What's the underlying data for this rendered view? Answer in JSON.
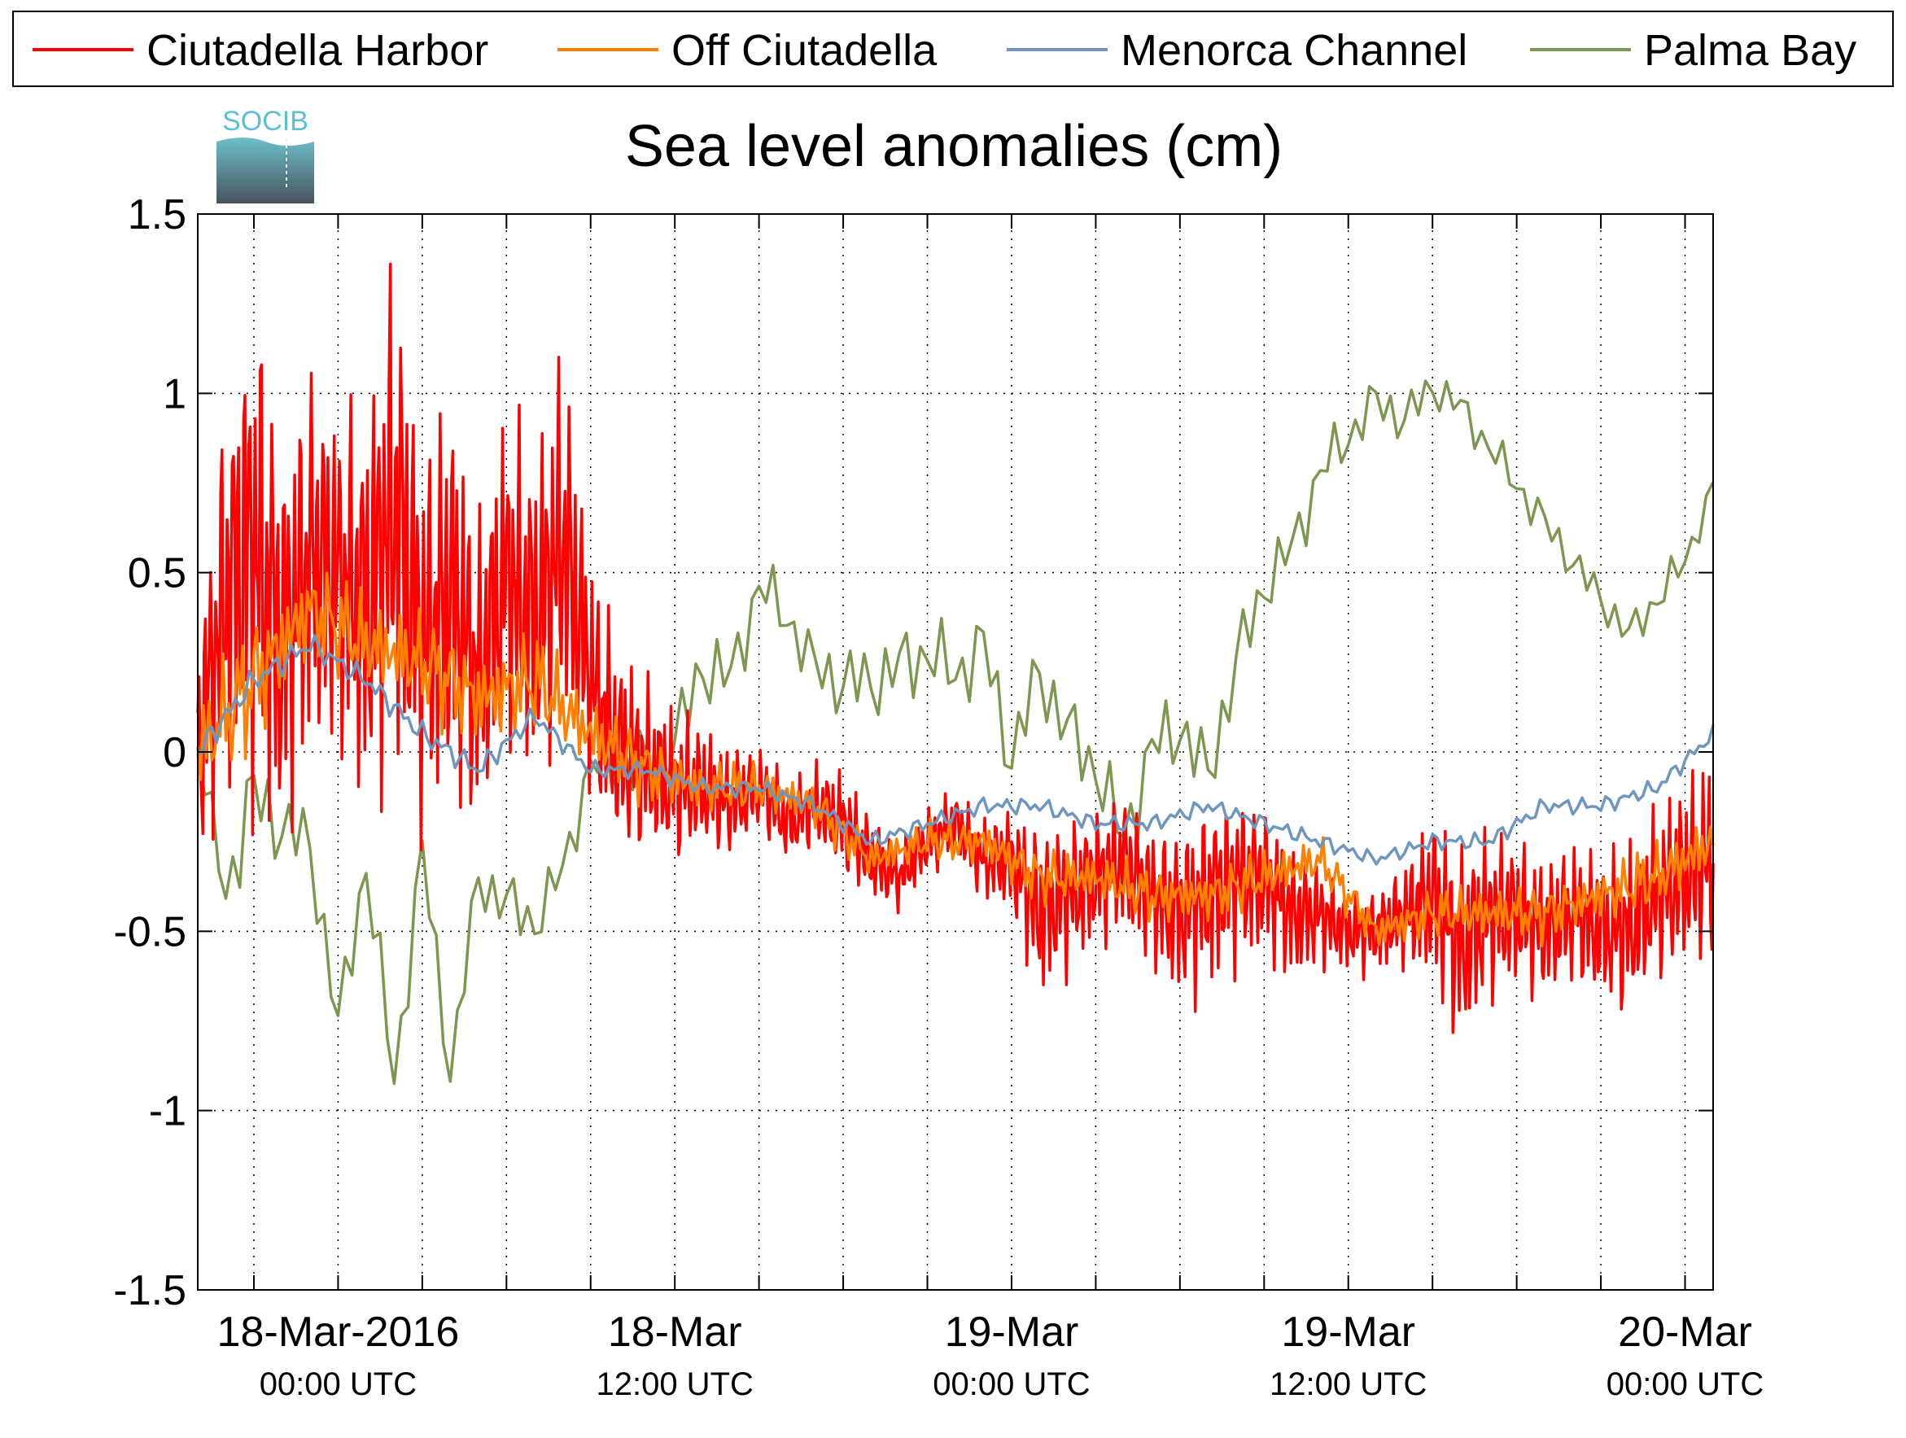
{
  "chart_data": {
    "type": "line",
    "title": "Sea level anomalies (cm)",
    "xlabel": "",
    "ylabel": "",
    "ylim": [
      -1.5,
      1.5
    ],
    "yticks": [
      -1.5,
      -1,
      -0.5,
      0,
      0.5,
      1,
      1.5
    ],
    "ytick_labels": [
      "-1.5",
      "-1",
      "-0.5",
      "0",
      "0.5",
      "1",
      "1.5"
    ],
    "xlim": [
      "2016-03-17 19:00",
      "2016-03-20 01:00"
    ],
    "x_major_ticks": [
      {
        "x": "2016-03-18 00:00",
        "label": "18-Mar-2016",
        "sublabel": "00:00 UTC"
      },
      {
        "x": "2016-03-18 12:00",
        "label": "18-Mar",
        "sublabel": "12:00 UTC"
      },
      {
        "x": "2016-03-19 00:00",
        "label": "19-Mar",
        "sublabel": "00:00 UTC"
      },
      {
        "x": "2016-03-19 12:00",
        "label": "19-Mar",
        "sublabel": "12:00 UTC"
      },
      {
        "x": "2016-03-20 00:00",
        "label": "20-Mar",
        "sublabel": "00:00 UTC"
      }
    ],
    "x_minor_tick_interval_hours": 3,
    "grid": true,
    "legend_position": "top",
    "series": [
      {
        "name": "Ciutadella Harbor",
        "color": "#ff0000",
        "x": [
          "2016-03-17 19:00",
          "2016-03-17 20:00",
          "2016-03-17 21:00",
          "2016-03-17 22:00",
          "2016-03-17 23:00",
          "2016-03-18 00:00",
          "2016-03-18 01:00",
          "2016-03-18 02:00",
          "2016-03-18 03:00",
          "2016-03-18 04:00",
          "2016-03-18 05:00",
          "2016-03-18 06:00",
          "2016-03-18 07:00",
          "2016-03-18 08:00",
          "2016-03-18 09:00",
          "2016-03-18 10:00",
          "2016-03-18 11:00",
          "2016-03-18 12:00",
          "2016-03-18 13:00",
          "2016-03-18 14:00",
          "2016-03-18 15:00",
          "2016-03-18 16:00",
          "2016-03-18 17:00",
          "2016-03-18 18:00",
          "2016-03-18 19:00",
          "2016-03-18 20:00",
          "2016-03-18 21:00",
          "2016-03-18 22:00",
          "2016-03-18 23:00",
          "2016-03-19 00:00",
          "2016-03-19 01:00",
          "2016-03-19 02:00",
          "2016-03-19 03:00",
          "2016-03-19 04:00",
          "2016-03-19 05:00",
          "2016-03-19 06:00",
          "2016-03-19 07:00",
          "2016-03-19 08:00",
          "2016-03-19 09:00",
          "2016-03-19 10:00",
          "2016-03-19 11:00",
          "2016-03-19 12:00",
          "2016-03-19 13:00",
          "2016-03-19 14:00",
          "2016-03-19 15:00",
          "2016-03-19 16:00",
          "2016-03-19 17:00",
          "2016-03-19 18:00",
          "2016-03-19 19:00",
          "2016-03-19 20:00",
          "2016-03-19 21:00",
          "2016-03-19 22:00",
          "2016-03-19 23:00",
          "2016-03-20 00:00",
          "2016-03-20 01:00"
        ],
        "values": [
          0.0,
          0.45,
          0.6,
          0.3,
          0.55,
          0.5,
          0.4,
          0.7,
          0.3,
          0.45,
          0.2,
          0.5,
          0.35,
          0.6,
          0.2,
          0.0,
          -0.05,
          -0.1,
          -0.1,
          -0.15,
          -0.1,
          -0.2,
          -0.15,
          -0.2,
          -0.3,
          -0.35,
          -0.25,
          -0.2,
          -0.3,
          -0.3,
          -0.45,
          -0.4,
          -0.35,
          -0.3,
          -0.4,
          -0.45,
          -0.4,
          -0.35,
          -0.35,
          -0.45,
          -0.45,
          -0.5,
          -0.5,
          -0.45,
          -0.4,
          -0.55,
          -0.45,
          -0.45,
          -0.5,
          -0.45,
          -0.5,
          -0.5,
          -0.4,
          -0.35,
          -0.3
        ],
        "amp": [
          0.35,
          0.55,
          0.75,
          0.6,
          0.55,
          0.5,
          0.6,
          0.75,
          0.55,
          0.6,
          0.45,
          0.5,
          0.5,
          0.55,
          0.35,
          0.3,
          0.25,
          0.22,
          0.18,
          0.15,
          0.12,
          0.12,
          0.12,
          0.15,
          0.12,
          0.1,
          0.1,
          0.1,
          0.12,
          0.15,
          0.25,
          0.22,
          0.2,
          0.2,
          0.2,
          0.25,
          0.28,
          0.25,
          0.22,
          0.2,
          0.15,
          0.12,
          0.12,
          0.15,
          0.25,
          0.3,
          0.25,
          0.22,
          0.2,
          0.2,
          0.22,
          0.25,
          0.25,
          0.28,
          0.3
        ]
      },
      {
        "name": "Off Ciutadella",
        "color": "#ff8000",
        "x": [
          "2016-03-17 19:00",
          "2016-03-17 21:00",
          "2016-03-17 23:00",
          "2016-03-18 01:00",
          "2016-03-18 03:00",
          "2016-03-18 05:00",
          "2016-03-18 07:00",
          "2016-03-18 09:00",
          "2016-03-18 11:00",
          "2016-03-18 13:00",
          "2016-03-18 15:00",
          "2016-03-18 17:00",
          "2016-03-18 19:00",
          "2016-03-18 21:00",
          "2016-03-18 23:00",
          "2016-03-19 01:00",
          "2016-03-19 03:00",
          "2016-03-19 05:00",
          "2016-03-19 07:00",
          "2016-03-19 09:00",
          "2016-03-19 11:00",
          "2016-03-19 13:00",
          "2016-03-19 15:00",
          "2016-03-19 17:00",
          "2016-03-19 19:00",
          "2016-03-19 21:00",
          "2016-03-19 23:00",
          "2016-03-20 01:00"
        ],
        "values": [
          0.0,
          0.2,
          0.4,
          0.3,
          0.25,
          0.15,
          0.2,
          0.05,
          -0.05,
          -0.1,
          -0.1,
          -0.15,
          -0.3,
          -0.25,
          -0.25,
          -0.35,
          -0.35,
          -0.4,
          -0.4,
          -0.35,
          -0.3,
          -0.5,
          -0.45,
          -0.45,
          -0.45,
          -0.4,
          -0.35,
          -0.25
        ],
        "amp": [
          0.15,
          0.2,
          0.15,
          0.15,
          0.15,
          0.15,
          0.15,
          0.12,
          0.1,
          0.08,
          0.07,
          0.07,
          0.06,
          0.06,
          0.07,
          0.08,
          0.08,
          0.08,
          0.08,
          0.08,
          0.07,
          0.06,
          0.07,
          0.08,
          0.08,
          0.08,
          0.1,
          0.1
        ]
      },
      {
        "name": "Menorca Channel",
        "color": "#6e96be",
        "x": [
          "2016-03-17 19:00",
          "2016-03-17 21:00",
          "2016-03-17 23:00",
          "2016-03-18 01:00",
          "2016-03-18 03:00",
          "2016-03-18 05:00",
          "2016-03-18 07:00",
          "2016-03-18 09:00",
          "2016-03-18 11:00",
          "2016-03-18 13:00",
          "2016-03-18 15:00",
          "2016-03-18 17:00",
          "2016-03-18 19:00",
          "2016-03-18 21:00",
          "2016-03-18 23:00",
          "2016-03-19 01:00",
          "2016-03-19 03:00",
          "2016-03-19 05:00",
          "2016-03-19 07:00",
          "2016-03-19 09:00",
          "2016-03-19 11:00",
          "2016-03-19 13:00",
          "2016-03-19 15:00",
          "2016-03-19 17:00",
          "2016-03-19 19:00",
          "2016-03-19 21:00",
          "2016-03-19 23:00",
          "2016-03-20 01:00"
        ],
        "values": [
          0.0,
          0.2,
          0.3,
          0.2,
          0.05,
          -0.05,
          0.1,
          -0.05,
          -0.05,
          -0.1,
          -0.1,
          -0.15,
          -0.25,
          -0.2,
          -0.15,
          -0.15,
          -0.2,
          -0.2,
          -0.15,
          -0.2,
          -0.25,
          -0.3,
          -0.25,
          -0.25,
          -0.15,
          -0.15,
          -0.1,
          0.05
        ],
        "amp": [
          0.08,
          0.08,
          0.07,
          0.07,
          0.07,
          0.07,
          0.06,
          0.05,
          0.05,
          0.05,
          0.05,
          0.05,
          0.05,
          0.05,
          0.05,
          0.05,
          0.05,
          0.05,
          0.05,
          0.05,
          0.05,
          0.04,
          0.05,
          0.05,
          0.05,
          0.05,
          0.05,
          0.05
        ]
      },
      {
        "name": "Palma Bay",
        "color": "#7d9650",
        "x": [
          "2016-03-17 19:00",
          "2016-03-17 20:00",
          "2016-03-17 21:00",
          "2016-03-17 22:00",
          "2016-03-17 23:00",
          "2016-03-18 00:00",
          "2016-03-18 01:00",
          "2016-03-18 02:00",
          "2016-03-18 03:00",
          "2016-03-18 04:00",
          "2016-03-18 05:00",
          "2016-03-18 06:00",
          "2016-03-18 07:00",
          "2016-03-18 08:00",
          "2016-03-18 09:00",
          "2016-03-18 10:00",
          "2016-03-18 11:00",
          "2016-03-18 12:00",
          "2016-03-18 13:00",
          "2016-03-18 14:00",
          "2016-03-18 15:00",
          "2016-03-18 16:00",
          "2016-03-18 17:00",
          "2016-03-18 18:00",
          "2016-03-18 19:00",
          "2016-03-18 20:00",
          "2016-03-18 21:00",
          "2016-03-18 22:00",
          "2016-03-18 23:00",
          "2016-03-19 00:00",
          "2016-03-19 01:00",
          "2016-03-19 02:00",
          "2016-03-19 03:00",
          "2016-03-19 04:00",
          "2016-03-19 05:00",
          "2016-03-19 06:00",
          "2016-03-19 07:00",
          "2016-03-19 08:00",
          "2016-03-19 09:00",
          "2016-03-19 10:00",
          "2016-03-19 11:00",
          "2016-03-19 12:00",
          "2016-03-19 13:00",
          "2016-03-19 14:00",
          "2016-03-19 15:00",
          "2016-03-19 16:00",
          "2016-03-19 17:00",
          "2016-03-19 18:00",
          "2016-03-19 19:00",
          "2016-03-19 20:00",
          "2016-03-19 21:00",
          "2016-03-19 22:00",
          "2016-03-19 23:00",
          "2016-03-20 00:00",
          "2016-03-20 01:00"
        ],
        "values": [
          0.0,
          -0.4,
          -0.15,
          -0.25,
          -0.3,
          -0.8,
          -0.35,
          -0.95,
          -0.3,
          -0.9,
          -0.35,
          -0.4,
          -0.45,
          -0.3,
          0.0,
          0.0,
          0.0,
          0.05,
          0.25,
          0.2,
          0.45,
          0.35,
          0.2,
          0.15,
          0.15,
          0.2,
          0.25,
          0.2,
          0.3,
          0.0,
          0.25,
          0.1,
          0.0,
          -0.2,
          0.05,
          0.1,
          -0.05,
          0.25,
          0.45,
          0.55,
          0.75,
          0.85,
          0.95,
          0.9,
          1.0,
          0.95,
          0.85,
          0.75,
          0.65,
          0.55,
          0.45,
          0.35,
          0.45,
          0.55,
          0.75
        ],
        "amp": [
          0.05,
          0.15,
          0.2,
          0.15,
          0.15,
          0.12,
          0.15,
          0.12,
          0.15,
          0.1,
          0.12,
          0.12,
          0.12,
          0.1,
          0.12,
          0.12,
          0.15,
          0.15,
          0.15,
          0.15,
          0.12,
          0.12,
          0.12,
          0.15,
          0.15,
          0.15,
          0.15,
          0.15,
          0.15,
          0.15,
          0.15,
          0.15,
          0.15,
          0.15,
          0.15,
          0.15,
          0.15,
          0.15,
          0.12,
          0.12,
          0.12,
          0.1,
          0.1,
          0.1,
          0.08,
          0.08,
          0.08,
          0.08,
          0.08,
          0.08,
          0.08,
          0.08,
          0.08,
          0.08,
          0.05
        ]
      }
    ]
  },
  "logo": {
    "text": "SOCIB",
    "color_text": "#5bc1d2",
    "color_top": "#6dbfcb",
    "color_bottom": "#46535d"
  }
}
